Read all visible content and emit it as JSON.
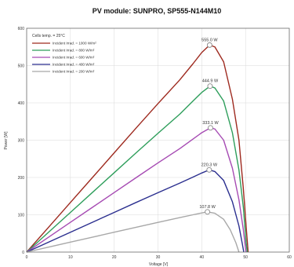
{
  "chart_data": {
    "type": "line",
    "title": "PV module:  SUNPRO,  SP555-N144M10",
    "xlabel": "Voltage [V]",
    "ylabel": "Power [W]",
    "xlim": [
      0,
      60
    ],
    "ylim": [
      0,
      600
    ],
    "x_ticks": [
      0,
      10,
      20,
      30,
      40,
      50,
      60
    ],
    "y_ticks": [
      0,
      100,
      200,
      300,
      400,
      500,
      600
    ],
    "grid": true,
    "legend_header": "Cells temp. = 25°C",
    "legend_position": "top-left",
    "series": [
      {
        "name": "Incident Irrad. = 1000 W/m²",
        "color": "#9e2a1f",
        "peak": {
          "x": 41.8,
          "y": 555.0,
          "label": "555.0 W"
        },
        "points": [
          [
            0,
            0
          ],
          [
            5,
            66.5
          ],
          [
            10,
            133
          ],
          [
            15,
            199.5
          ],
          [
            20,
            266
          ],
          [
            25,
            332.5
          ],
          [
            30,
            398
          ],
          [
            35,
            462
          ],
          [
            38,
            505
          ],
          [
            40,
            535
          ],
          [
            41.8,
            555
          ],
          [
            43,
            550
          ],
          [
            45,
            510
          ],
          [
            47,
            410
          ],
          [
            48.5,
            300
          ],
          [
            49.5,
            170
          ],
          [
            50.2,
            60
          ],
          [
            50.6,
            0
          ]
        ]
      },
      {
        "name": "Incident Irrad. = 800 W/m²",
        "color": "#2e9e5b",
        "peak": {
          "x": 41.9,
          "y": 444.9,
          "label": "444.9 W"
        },
        "points": [
          [
            0,
            0
          ],
          [
            5,
            53.2
          ],
          [
            10,
            106.4
          ],
          [
            15,
            159.6
          ],
          [
            20,
            212.8
          ],
          [
            25,
            266
          ],
          [
            30,
            318.5
          ],
          [
            35,
            370
          ],
          [
            38,
            405
          ],
          [
            40,
            428
          ],
          [
            41.9,
            444.9
          ],
          [
            43,
            440
          ],
          [
            45,
            405
          ],
          [
            47,
            320
          ],
          [
            48.5,
            220
          ],
          [
            49.5,
            120
          ],
          [
            50.1,
            30
          ],
          [
            50.4,
            0
          ]
        ]
      },
      {
        "name": "Incident Irrad. = 600 W/m²",
        "color": "#a64bb3",
        "peak": {
          "x": 42.0,
          "y": 333.1,
          "label": "333.1 W"
        },
        "points": [
          [
            0,
            0
          ],
          [
            5,
            39.9
          ],
          [
            10,
            79.8
          ],
          [
            15,
            119.7
          ],
          [
            20,
            159.6
          ],
          [
            25,
            199.5
          ],
          [
            30,
            239
          ],
          [
            35,
            277.5
          ],
          [
            38,
            303
          ],
          [
            40,
            320
          ],
          [
            42,
            333.1
          ],
          [
            43,
            330
          ],
          [
            45,
            300
          ],
          [
            47,
            225
          ],
          [
            48.5,
            140
          ],
          [
            49.5,
            60
          ],
          [
            50.1,
            0
          ]
        ]
      },
      {
        "name": "Incident Irrad. = 400 W/m²",
        "color": "#2b2f8f",
        "peak": {
          "x": 41.7,
          "y": 220.3,
          "label": "220.3 W"
        },
        "points": [
          [
            0,
            0
          ],
          [
            5,
            26.6
          ],
          [
            10,
            53.2
          ],
          [
            15,
            79.8
          ],
          [
            20,
            106.4
          ],
          [
            25,
            133
          ],
          [
            30,
            159.3
          ],
          [
            35,
            185
          ],
          [
            38,
            201
          ],
          [
            40,
            212
          ],
          [
            41.7,
            220.3
          ],
          [
            43,
            216
          ],
          [
            45,
            192
          ],
          [
            47,
            135
          ],
          [
            48.5,
            70
          ],
          [
            49.3,
            20
          ],
          [
            49.6,
            0
          ]
        ]
      },
      {
        "name": "Incident Irrad. = 200 W/m²",
        "color": "#a8a8a8",
        "peak": {
          "x": 41.3,
          "y": 107.8,
          "label": "107.8 W"
        },
        "points": [
          [
            0,
            0
          ],
          [
            5,
            13.3
          ],
          [
            10,
            26.6
          ],
          [
            15,
            39.9
          ],
          [
            20,
            53.2
          ],
          [
            25,
            66.5
          ],
          [
            30,
            79.6
          ],
          [
            35,
            92.5
          ],
          [
            38,
            100
          ],
          [
            40,
            105
          ],
          [
            41.3,
            107.8
          ],
          [
            43,
            104
          ],
          [
            45,
            88
          ],
          [
            46.5,
            60
          ],
          [
            47.8,
            25
          ],
          [
            48.5,
            0
          ]
        ]
      }
    ]
  }
}
